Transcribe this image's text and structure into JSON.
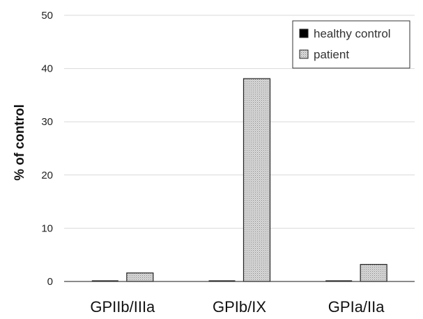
{
  "chart_data": {
    "type": "bar",
    "categories": [
      "GPIIb/IIIa",
      "GPIb/IX",
      "GPIa/IIa"
    ],
    "series": [
      {
        "name": "healthy control",
        "values": [
          0.2,
          0.2,
          0.2
        ],
        "color": "#000000"
      },
      {
        "name": "patient",
        "values": [
          1.6,
          38.1,
          3.2
        ],
        "color": "#d9d9d9",
        "pattern": "dotted"
      }
    ],
    "ylabel": "% of control",
    "xlabel": "",
    "ylim": [
      0,
      50
    ],
    "yticks": [
      0,
      10,
      20,
      30,
      40,
      50
    ],
    "grid": true,
    "legend_position": "top-right"
  }
}
